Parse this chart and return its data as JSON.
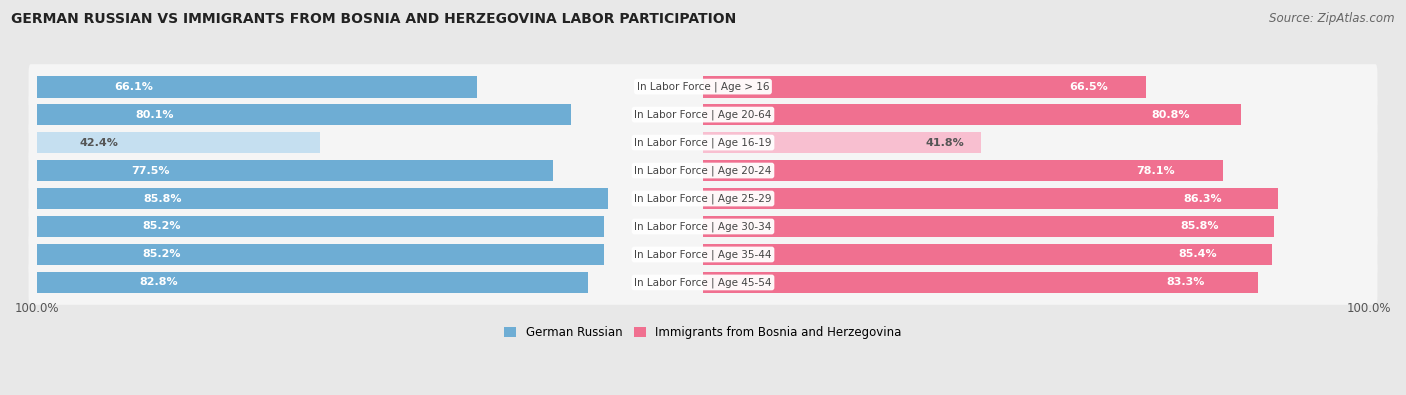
{
  "title": "GERMAN RUSSIAN VS IMMIGRANTS FROM BOSNIA AND HERZEGOVINA LABOR PARTICIPATION",
  "source": "Source: ZipAtlas.com",
  "categories": [
    "In Labor Force | Age > 16",
    "In Labor Force | Age 20-64",
    "In Labor Force | Age 16-19",
    "In Labor Force | Age 20-24",
    "In Labor Force | Age 25-29",
    "In Labor Force | Age 30-34",
    "In Labor Force | Age 35-44",
    "In Labor Force | Age 45-54"
  ],
  "german_russian": [
    66.1,
    80.1,
    42.4,
    77.5,
    85.8,
    85.2,
    85.2,
    82.8
  ],
  "bosnia": [
    66.5,
    80.8,
    41.8,
    78.1,
    86.3,
    85.8,
    85.4,
    83.3
  ],
  "german_russian_color": "#6eadd4",
  "german_russian_light_color": "#c5dff0",
  "bosnia_color": "#f07090",
  "bosnia_light_color": "#f8bfd0",
  "bg_color": "#e8e8e8",
  "row_bg_color": "#f5f5f5",
  "legend_german": "German Russian",
  "legend_bosnia": "Immigrants from Bosnia and Herzegovina",
  "max_value": 100.0,
  "label_threshold": 50,
  "title_fontsize": 10,
  "source_fontsize": 8.5,
  "bar_label_fontsize": 8,
  "cat_label_fontsize": 7.5,
  "tick_fontsize": 8.5
}
